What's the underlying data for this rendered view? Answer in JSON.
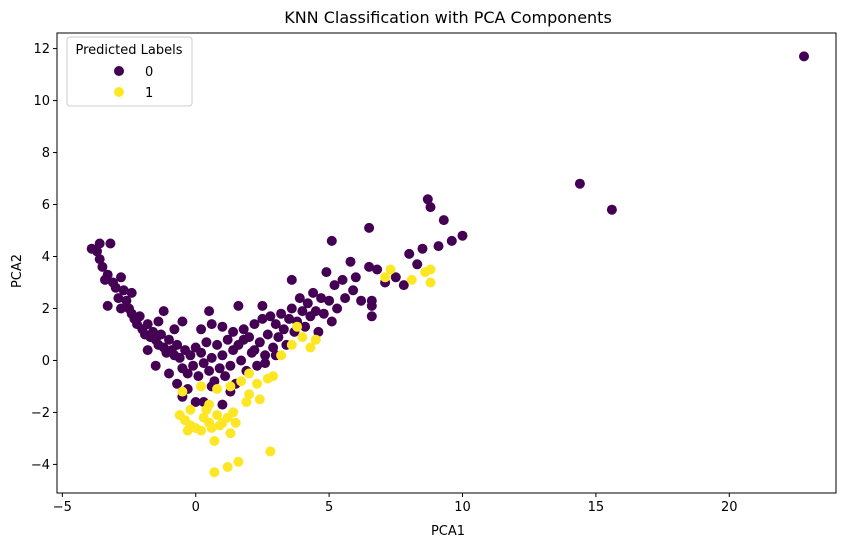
{
  "chart_data": {
    "type": "scatter",
    "title": "KNN Classification with PCA Components",
    "xlabel": "PCA1",
    "ylabel": "PCA2",
    "xlim": [
      -5.2,
      24.0
    ],
    "ylim": [
      -5.1,
      12.6
    ],
    "xticks": [
      -5,
      0,
      5,
      10,
      15,
      20
    ],
    "yticks": [
      -4,
      -2,
      0,
      2,
      4,
      6,
      8,
      10,
      12
    ],
    "grid": false,
    "legend": {
      "title": "Predicted Labels",
      "placement": "top-left"
    },
    "series": [
      {
        "name": "0",
        "color": "#440154",
        "points": [
          [
            -3.9,
            4.3
          ],
          [
            -3.7,
            4.2
          ],
          [
            -3.6,
            3.9
          ],
          [
            -3.5,
            3.6
          ],
          [
            -3.3,
            3.3
          ],
          [
            -3.2,
            4.5
          ],
          [
            -3.4,
            3.1
          ],
          [
            -3.1,
            3.0
          ],
          [
            -3.0,
            2.8
          ],
          [
            -3.3,
            2.1
          ],
          [
            -2.9,
            2.4
          ],
          [
            -2.7,
            2.7
          ],
          [
            -2.8,
            2.0
          ],
          [
            -2.6,
            2.3
          ],
          [
            -2.5,
            2.0
          ],
          [
            -2.4,
            1.8
          ],
          [
            -2.3,
            1.6
          ],
          [
            -2.2,
            1.4
          ],
          [
            -2.1,
            1.7
          ],
          [
            -2.0,
            1.2
          ],
          [
            -1.9,
            1.0
          ],
          [
            -1.8,
            1.4
          ],
          [
            -1.7,
            0.9
          ],
          [
            -1.6,
            1.1
          ],
          [
            -1.5,
            0.8
          ],
          [
            -1.4,
            0.6
          ],
          [
            -1.3,
            1.0
          ],
          [
            -1.2,
            0.5
          ],
          [
            -1.1,
            0.3
          ],
          [
            -1.0,
            0.8
          ],
          [
            -0.9,
            0.4
          ],
          [
            -0.8,
            0.2
          ],
          [
            -0.7,
            0.6
          ],
          [
            -0.6,
            0.1
          ],
          [
            -0.5,
            -0.3
          ],
          [
            -0.4,
            0.4
          ],
          [
            -0.3,
            -0.5
          ],
          [
            -0.2,
            0.2
          ],
          [
            -0.1,
            -0.2
          ],
          [
            0.0,
            0.5
          ],
          [
            0.1,
            -0.6
          ],
          [
            0.2,
            0.3
          ],
          [
            0.3,
            -0.1
          ],
          [
            0.4,
            0.7
          ],
          [
            0.5,
            -0.4
          ],
          [
            0.6,
            0.1
          ],
          [
            0.7,
            -0.8
          ],
          [
            0.8,
            0.6
          ],
          [
            0.9,
            -0.3
          ],
          [
            1.0,
            0.2
          ],
          [
            1.1,
            -0.6
          ],
          [
            1.2,
            0.8
          ],
          [
            1.3,
            -0.2
          ],
          [
            1.4,
            0.4
          ],
          [
            1.5,
            -0.9
          ],
          [
            1.6,
            0.6
          ],
          [
            1.7,
            0.0
          ],
          [
            1.8,
            1.2
          ],
          [
            1.9,
            -0.4
          ],
          [
            2.0,
            0.9
          ],
          [
            2.1,
            0.3
          ],
          [
            2.2,
            1.4
          ],
          [
            2.3,
            -0.2
          ],
          [
            2.4,
            0.7
          ],
          [
            2.5,
            1.6
          ],
          [
            2.6,
            0.2
          ],
          [
            2.7,
            1.0
          ],
          [
            2.8,
            1.7
          ],
          [
            2.9,
            0.5
          ],
          [
            3.0,
            1.4
          ],
          [
            3.1,
            0.9
          ],
          [
            3.2,
            1.8
          ],
          [
            3.3,
            1.2
          ],
          [
            3.4,
            0.6
          ],
          [
            3.5,
            1.6
          ],
          [
            3.6,
            2.0
          ],
          [
            3.7,
            1.1
          ],
          [
            3.8,
            1.5
          ],
          [
            3.9,
            2.4
          ],
          [
            4.0,
            1.9
          ],
          [
            4.1,
            1.3
          ],
          [
            4.2,
            2.2
          ],
          [
            4.3,
            1.7
          ],
          [
            4.4,
            2.6
          ],
          [
            4.5,
            1.9
          ],
          [
            4.6,
            1.1
          ],
          [
            4.7,
            2.4
          ],
          [
            4.8,
            1.8
          ],
          [
            4.9,
            3.4
          ],
          [
            5.0,
            2.3
          ],
          [
            5.1,
            1.5
          ],
          [
            5.2,
            2.9
          ],
          [
            5.3,
            2.0
          ],
          [
            5.5,
            3.1
          ],
          [
            5.6,
            2.4
          ],
          [
            5.8,
            3.8
          ],
          [
            5.9,
            2.7
          ],
          [
            6.0,
            3.2
          ],
          [
            6.2,
            2.3
          ],
          [
            6.5,
            3.6
          ],
          [
            6.6,
            2.1
          ],
          [
            6.8,
            3.5
          ],
          [
            7.1,
            3.0
          ],
          [
            7.5,
            3.2
          ],
          [
            7.8,
            2.9
          ],
          [
            8.0,
            4.1
          ],
          [
            8.3,
            3.7
          ],
          [
            8.5,
            4.3
          ],
          [
            8.7,
            6.2
          ],
          [
            8.8,
            5.9
          ],
          [
            9.1,
            4.4
          ],
          [
            9.3,
            5.4
          ],
          [
            9.6,
            4.6
          ],
          [
            10.0,
            4.8
          ],
          [
            5.1,
            4.6
          ],
          [
            6.5,
            5.1
          ],
          [
            6.6,
            2.3
          ],
          [
            6.6,
            1.7
          ],
          [
            3.6,
            3.1
          ],
          [
            2.5,
            2.1
          ],
          [
            1.6,
            2.1
          ],
          [
            0.5,
            1.9
          ],
          [
            -0.5,
            1.5
          ],
          [
            -1.2,
            1.9
          ],
          [
            -2.4,
            2.6
          ],
          [
            -2.8,
            3.2
          ],
          [
            -3.6,
            4.5
          ],
          [
            0.0,
            -1.6
          ],
          [
            -0.5,
            -1.4
          ],
          [
            -0.7,
            -0.9
          ],
          [
            -0.3,
            -1.1
          ],
          [
            0.3,
            -1.6
          ],
          [
            0.6,
            -1.0
          ],
          [
            1.0,
            -1.7
          ],
          [
            1.3,
            -1.2
          ],
          [
            -1.0,
            -0.5
          ],
          [
            -1.5,
            -0.2
          ],
          [
            -1.8,
            0.4
          ],
          [
            0.2,
            1.2
          ],
          [
            0.6,
            1.4
          ],
          [
            1.0,
            1.3
          ],
          [
            1.4,
            1.1
          ],
          [
            1.8,
            0.8
          ],
          [
            2.2,
            0.4
          ],
          [
            2.6,
            -0.1
          ],
          [
            3.0,
            0.2
          ],
          [
            -0.8,
            1.2
          ],
          [
            -1.4,
            1.5
          ],
          [
            14.4,
            6.8
          ],
          [
            15.6,
            5.8
          ],
          [
            22.8,
            11.7
          ]
        ]
      },
      {
        "name": "1",
        "color": "#fde725",
        "points": [
          [
            -0.5,
            -1.2
          ],
          [
            0.2,
            -1.0
          ],
          [
            0.8,
            -1.1
          ],
          [
            1.3,
            -1.0
          ],
          [
            1.7,
            -0.8
          ],
          [
            2.3,
            -0.9
          ],
          [
            2.7,
            -0.7
          ],
          [
            2.9,
            -0.6
          ],
          [
            -0.6,
            -2.1
          ],
          [
            -0.4,
            -2.3
          ],
          [
            -0.2,
            -2.5
          ],
          [
            0.0,
            -2.6
          ],
          [
            0.2,
            -2.7
          ],
          [
            0.3,
            -2.2
          ],
          [
            0.5,
            -2.4
          ],
          [
            0.6,
            -2.6
          ],
          [
            0.8,
            -2.1
          ],
          [
            0.9,
            -2.5
          ],
          [
            0.4,
            -1.9
          ],
          [
            1.2,
            -2.2
          ],
          [
            1.4,
            -2.0
          ],
          [
            1.5,
            -2.4
          ],
          [
            -0.3,
            -2.7
          ],
          [
            0.7,
            -3.1
          ],
          [
            1.3,
            -2.8
          ],
          [
            2.8,
            -3.5
          ],
          [
            0.7,
            -4.3
          ],
          [
            1.2,
            -4.1
          ],
          [
            1.6,
            -3.9
          ],
          [
            2.0,
            -1.3
          ],
          [
            2.4,
            -1.5
          ],
          [
            1.9,
            -1.6
          ],
          [
            3.2,
            0.2
          ],
          [
            3.6,
            0.6
          ],
          [
            4.0,
            0.9
          ],
          [
            4.3,
            0.5
          ],
          [
            4.5,
            0.8
          ],
          [
            3.8,
            1.3
          ],
          [
            7.1,
            3.2
          ],
          [
            7.3,
            3.5
          ],
          [
            8.1,
            3.1
          ],
          [
            8.6,
            3.4
          ],
          [
            8.8,
            3.5
          ],
          [
            8.8,
            3.0
          ],
          [
            2.0,
            -0.5
          ],
          [
            0.5,
            -1.7
          ],
          [
            -0.2,
            -1.9
          ],
          [
            1.0,
            -2.4
          ]
        ]
      }
    ]
  }
}
